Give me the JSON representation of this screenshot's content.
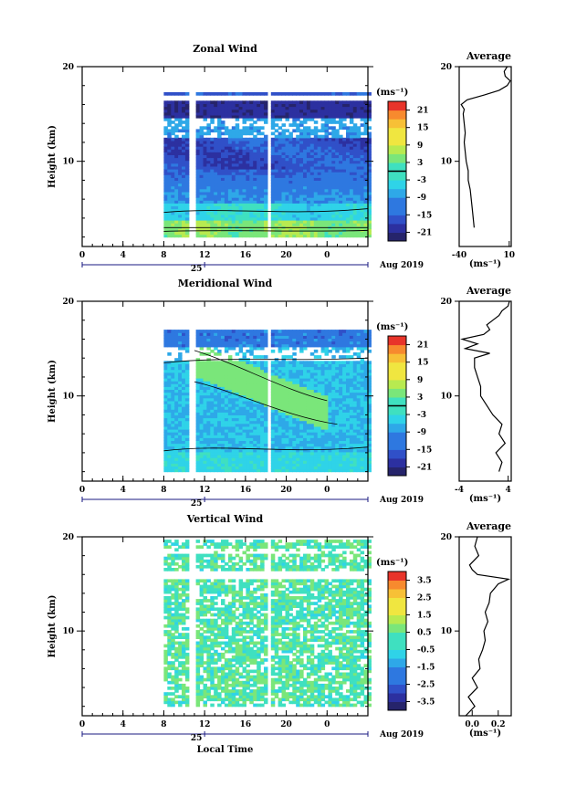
{
  "chart_data": [
    {
      "type": "heatmap",
      "title": "Zonal Wind",
      "ylabel": "Height (km)",
      "ylim": [
        1,
        20
      ],
      "xlim": [
        0,
        28
      ],
      "x_ticks": [
        "0",
        "4",
        "8",
        "12",
        "16",
        "20",
        "0"
      ],
      "y_ticks": [
        "20",
        "10"
      ],
      "day_label": "25",
      "date_label": "Aug 2019",
      "colorbar": {
        "unit_label": "(ms⁻¹)",
        "range": [
          -24,
          24
        ],
        "ticks": [
          "21",
          "15",
          "9",
          "3",
          "-3",
          "-9",
          "-15",
          "-21"
        ],
        "tick_values": [
          21,
          15,
          9,
          3,
          -3,
          -9,
          -15,
          -21
        ],
        "contour_level": 0
      },
      "data_start_hour": 8,
      "data_end_hour": 28,
      "gaps_hours": [
        10.5,
        18.2
      ],
      "profile": [
        {
          "h": 3.0,
          "v": -25.0
        },
        {
          "h": 5.0,
          "v": -27.0
        },
        {
          "h": 7.0,
          "v": -29.0
        },
        {
          "h": 8.0,
          "v": -31.0
        },
        {
          "h": 9.0,
          "v": -31.0
        },
        {
          "h": 10.0,
          "v": -33.0
        },
        {
          "h": 11.0,
          "v": -34.0
        },
        {
          "h": 12.0,
          "v": -35.0
        },
        {
          "h": 13.0,
          "v": -34.0
        },
        {
          "h": 14.0,
          "v": -35.0
        },
        {
          "h": 15.0,
          "v": -36.0
        },
        {
          "h": 15.5,
          "v": -35.0
        },
        {
          "h": 16.0,
          "v": -38.0
        },
        {
          "h": 16.5,
          "v": -32.0
        },
        {
          "h": 17.0,
          "v": -15.0
        },
        {
          "h": 17.5,
          "v": 0.0
        },
        {
          "h": 18.0,
          "v": 8.0
        },
        {
          "h": 18.5,
          "v": 11.0
        },
        {
          "h": 19.0,
          "v": 6.0
        },
        {
          "h": 19.5,
          "v": 5.0
        },
        {
          "h": 20.0,
          "v": 8.0
        }
      ],
      "profile_title": "Average",
      "profile_xlim": [
        -40,
        12
      ],
      "profile_xticks": [
        "-40",
        "10"
      ],
      "profile_xtick_values": [
        -40,
        10
      ],
      "profile_unit": "(ms⁻¹)"
    },
    {
      "type": "heatmap",
      "title": "Meridional Wind",
      "ylabel": "Height (km)",
      "ylim": [
        1,
        20
      ],
      "xlim": [
        0,
        28
      ],
      "x_ticks": [
        "0",
        "4",
        "8",
        "12",
        "16",
        "20",
        "0"
      ],
      "y_ticks": [
        "20",
        "10"
      ],
      "day_label": "25",
      "date_label": "Aug 2019",
      "colorbar": {
        "unit_label": "(ms⁻¹)",
        "range": [
          -24,
          24
        ],
        "ticks": [
          "21",
          "15",
          "9",
          "3",
          "-3",
          "-9",
          "-15",
          "-21"
        ],
        "tick_values": [
          21,
          15,
          9,
          3,
          -3,
          -9,
          -15,
          -21
        ],
        "contour_level": 0
      },
      "data_start_hour": 8,
      "data_end_hour": 28,
      "gaps_hours": [
        10.5,
        18.2
      ],
      "profile": [
        {
          "h": 2.0,
          "v": 2.5
        },
        {
          "h": 3.0,
          "v": 3.0
        },
        {
          "h": 4.0,
          "v": 2.0
        },
        {
          "h": 5.0,
          "v": 3.5
        },
        {
          "h": 6.0,
          "v": 2.5
        },
        {
          "h": 7.0,
          "v": 3.0
        },
        {
          "h": 8.0,
          "v": 1.5
        },
        {
          "h": 9.0,
          "v": 0.5
        },
        {
          "h": 10.0,
          "v": -0.5
        },
        {
          "h": 11.0,
          "v": -0.5
        },
        {
          "h": 12.0,
          "v": -1.0
        },
        {
          "h": 13.0,
          "v": -1.5
        },
        {
          "h": 14.0,
          "v": -1.5
        },
        {
          "h": 14.5,
          "v": 1.0
        },
        {
          "h": 15.0,
          "v": -3.0
        },
        {
          "h": 15.5,
          "v": -1.0
        },
        {
          "h": 16.0,
          "v": -3.5
        },
        {
          "h": 16.5,
          "v": 0.0
        },
        {
          "h": 17.0,
          "v": 1.0
        },
        {
          "h": 17.5,
          "v": 0.5
        },
        {
          "h": 18.0,
          "v": 1.5
        },
        {
          "h": 18.5,
          "v": 2.5
        },
        {
          "h": 19.0,
          "v": 3.0
        },
        {
          "h": 19.5,
          "v": 4.0
        },
        {
          "h": 20.0,
          "v": 4.2
        }
      ],
      "profile_title": "Average",
      "profile_xlim": [
        -4,
        4.5
      ],
      "profile_xticks": [
        "-4",
        "4"
      ],
      "profile_xtick_values": [
        -4,
        4
      ],
      "profile_unit": "(ms⁻¹)"
    },
    {
      "type": "heatmap",
      "title": "Vertical Wind",
      "ylabel": "Height (km)",
      "ylim": [
        1,
        20
      ],
      "xlim": [
        0,
        28
      ],
      "x_ticks": [
        "0",
        "4",
        "8",
        "12",
        "16",
        "20",
        "0"
      ],
      "y_ticks": [
        "20",
        "10"
      ],
      "day_label": "25",
      "date_label": "Aug 2019",
      "xlabel": "Local Time",
      "colorbar": {
        "unit_label": "(ms⁻¹)",
        "range": [
          -4,
          4
        ],
        "ticks": [
          "3.5",
          "2.5",
          "1.5",
          "0.5",
          "-0.5",
          "-1.5",
          "-2.5",
          "-3.5"
        ],
        "tick_values": [
          3.5,
          2.5,
          1.5,
          0.5,
          -0.5,
          -1.5,
          -2.5,
          -3.5
        ]
      },
      "data_start_hour": 8,
      "data_end_hour": 28,
      "gaps_hours": [
        10.5,
        18.2
      ],
      "profile": [
        {
          "h": 1.0,
          "v": -0.05
        },
        {
          "h": 2.0,
          "v": 0.02
        },
        {
          "h": 3.0,
          "v": -0.03
        },
        {
          "h": 4.0,
          "v": 0.04
        },
        {
          "h": 5.0,
          "v": 0.0
        },
        {
          "h": 6.0,
          "v": 0.06
        },
        {
          "h": 7.0,
          "v": 0.05
        },
        {
          "h": 8.0,
          "v": 0.08
        },
        {
          "h": 9.0,
          "v": 0.1
        },
        {
          "h": 10.0,
          "v": 0.09
        },
        {
          "h": 11.0,
          "v": 0.12
        },
        {
          "h": 12.0,
          "v": 0.1
        },
        {
          "h": 13.0,
          "v": 0.13
        },
        {
          "h": 14.0,
          "v": 0.14
        },
        {
          "h": 15.0,
          "v": 0.2
        },
        {
          "h": 15.5,
          "v": 0.28
        },
        {
          "h": 16.0,
          "v": 0.04
        },
        {
          "h": 16.5,
          "v": 0.0
        },
        {
          "h": 17.0,
          "v": -0.02
        },
        {
          "h": 18.0,
          "v": 0.05
        },
        {
          "h": 19.0,
          "v": 0.02
        },
        {
          "h": 20.0,
          "v": 0.04
        }
      ],
      "profile_title": "Average",
      "profile_xlim": [
        -0.1,
        0.3
      ],
      "profile_xticks": [
        "0.0",
        "0.2"
      ],
      "profile_xtick_values": [
        0.0,
        0.2
      ],
      "profile_unit": "(ms⁻¹)"
    }
  ]
}
